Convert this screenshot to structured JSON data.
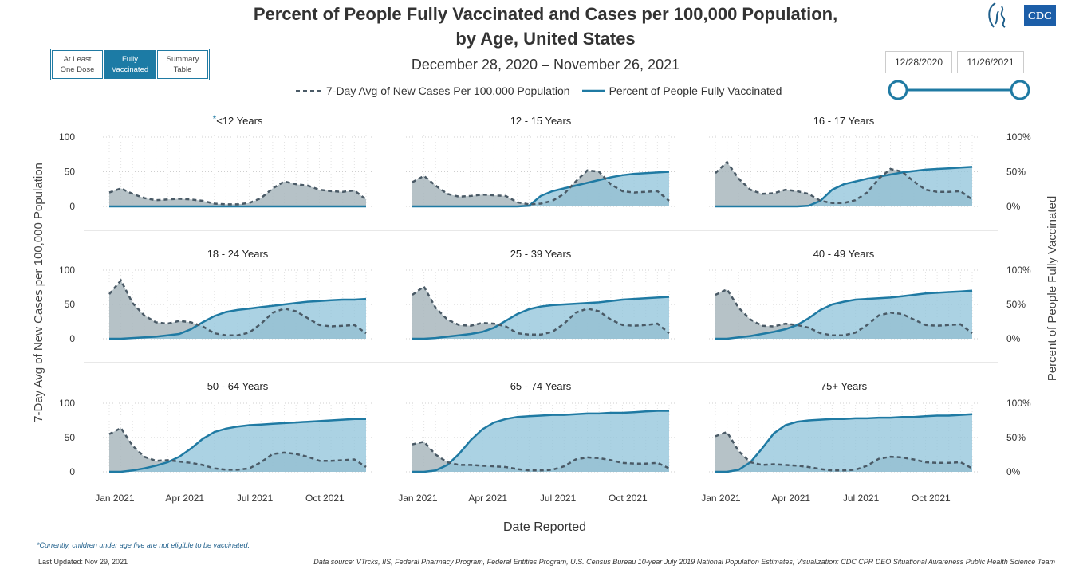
{
  "header": {
    "title_line1": "Percent of People Fully Vaccinated and Cases per 100,000 Population,",
    "title_line2": "by Age, United States",
    "subtitle": "December 28, 2020 – November 26, 2021",
    "logo_text": "CDC"
  },
  "toggle": {
    "options": [
      {
        "line1": "At Least",
        "line2": "One Dose"
      },
      {
        "line1": "Fully",
        "line2": "Vaccinated"
      },
      {
        "line1": "Summary",
        "line2": "Table"
      }
    ],
    "active_index": 1
  },
  "date_range": {
    "start": "12/28/2020",
    "end": "11/26/2021"
  },
  "legend": {
    "cases": "7-Day Avg of New Cases Per 100,000 Population",
    "vaccinated": "Percent of People Fully Vaccinated"
  },
  "footer": {
    "footnote": "*Currently, children under age five are not eligible to be vaccinated.",
    "last_updated": "Last Updated: Nov 29, 2021",
    "source": "Data source: VTrcks, IIS, Federal Pharmacy Program, Federal Entities Program, U.S. Census Bureau 10-year July 2019 National Population Estimates; Visualization: CDC CPR DEO Situational Awareness Public Health Science Team"
  },
  "colors": {
    "cases_line": "#4a5a66",
    "cases_fill": "#a9b7bd",
    "vax_line": "#1f7aa3",
    "vax_fill": "#8fc3d9",
    "grid": "#cfcfcf",
    "accent": "#1c7ba5"
  },
  "chart_data": {
    "type": "area",
    "xlabel": "Date Reported",
    "ylabel_left": "7-Day Avg of New Cases per 100,000 Population",
    "ylabel_right": "Percent of People Fully Vaccinated",
    "x_ticks": [
      "Jan 2021",
      "Apr 2021",
      "Jul 2021",
      "Oct 2021"
    ],
    "left_ticks": [
      "100",
      "50",
      "0"
    ],
    "right_ticks": [
      "100%",
      "50%",
      "0%"
    ],
    "ylim_left": [
      0,
      100
    ],
    "ylim_right": [
      0,
      100
    ],
    "x_months": [
      0,
      0.5,
      1,
      1.5,
      2,
      2.5,
      3,
      3.5,
      4,
      4.5,
      5,
      5.5,
      6,
      6.5,
      7,
      7.5,
      8,
      8.5,
      9,
      9.5,
      10,
      10.5,
      11
    ],
    "panels": [
      {
        "title": "<12 Years",
        "title_prefix": "*",
        "cases": [
          20,
          26,
          18,
          12,
          9,
          10,
          11,
          10,
          8,
          4,
          3,
          3,
          5,
          12,
          26,
          36,
          32,
          30,
          24,
          22,
          21,
          23,
          10
        ],
        "vaccinated": [
          0,
          0,
          0,
          0,
          0,
          0,
          0,
          0,
          0,
          0,
          0,
          0,
          0,
          0,
          0,
          0,
          0,
          0,
          0,
          0,
          0,
          0,
          0
        ]
      },
      {
        "title": "12 - 15 Years",
        "title_prefix": "",
        "cases": [
          35,
          44,
          30,
          18,
          14,
          15,
          17,
          16,
          15,
          6,
          3,
          4,
          8,
          18,
          36,
          52,
          50,
          32,
          22,
          20,
          21,
          22,
          8
        ],
        "vaccinated": [
          0,
          0,
          0,
          0,
          0,
          0,
          0,
          0,
          0,
          0,
          1,
          15,
          22,
          26,
          30,
          34,
          38,
          42,
          45,
          47,
          48,
          49,
          50
        ]
      },
      {
        "title": "16 - 17 Years",
        "title_prefix": "",
        "cases": [
          48,
          64,
          40,
          24,
          18,
          19,
          24,
          22,
          18,
          8,
          5,
          5,
          9,
          20,
          40,
          54,
          50,
          36,
          24,
          21,
          21,
          22,
          10
        ],
        "vaccinated": [
          0,
          0,
          0,
          0,
          0,
          0,
          0,
          0,
          1,
          8,
          24,
          32,
          36,
          40,
          43,
          46,
          49,
          51,
          53,
          54,
          55,
          56,
          57
        ]
      },
      {
        "title": "18 - 24 Years",
        "title_prefix": "",
        "cases": [
          65,
          85,
          52,
          34,
          24,
          22,
          26,
          24,
          18,
          8,
          5,
          5,
          9,
          22,
          38,
          44,
          40,
          30,
          20,
          18,
          19,
          20,
          8
        ],
        "vaccinated": [
          0,
          0,
          1,
          2,
          3,
          5,
          7,
          14,
          24,
          33,
          39,
          42,
          44,
          46,
          48,
          50,
          52,
          54,
          55,
          56,
          57,
          57,
          58
        ]
      },
      {
        "title": "25 - 39 Years",
        "title_prefix": "",
        "cases": [
          64,
          76,
          45,
          28,
          20,
          19,
          23,
          22,
          18,
          8,
          6,
          6,
          10,
          22,
          38,
          44,
          40,
          28,
          20,
          19,
          20,
          22,
          8
        ],
        "vaccinated": [
          0,
          0,
          1,
          3,
          5,
          7,
          10,
          16,
          26,
          36,
          43,
          47,
          49,
          50,
          51,
          52,
          53,
          55,
          57,
          58,
          59,
          60,
          61
        ]
      },
      {
        "title": "40 - 49 Years",
        "title_prefix": "",
        "cases": [
          64,
          72,
          45,
          28,
          19,
          18,
          22,
          20,
          16,
          8,
          5,
          5,
          9,
          20,
          34,
          38,
          36,
          28,
          20,
          19,
          20,
          21,
          8
        ],
        "vaccinated": [
          0,
          0,
          2,
          4,
          7,
          10,
          14,
          20,
          30,
          42,
          50,
          54,
          57,
          58,
          59,
          60,
          62,
          64,
          66,
          67,
          68,
          69,
          70
        ]
      },
      {
        "title": "50 - 64 Years",
        "title_prefix": "",
        "cases": [
          55,
          64,
          38,
          22,
          16,
          17,
          15,
          13,
          10,
          5,
          3,
          3,
          5,
          14,
          26,
          28,
          26,
          22,
          16,
          16,
          17,
          18,
          7
        ],
        "vaccinated": [
          0,
          0,
          2,
          5,
          9,
          14,
          22,
          34,
          48,
          58,
          63,
          66,
          68,
          69,
          70,
          71,
          72,
          73,
          74,
          75,
          76,
          77,
          77
        ]
      },
      {
        "title": "65 - 74 Years",
        "title_prefix": "",
        "cases": [
          40,
          44,
          25,
          14,
          10,
          10,
          9,
          8,
          7,
          4,
          2,
          2,
          3,
          8,
          18,
          21,
          20,
          17,
          13,
          12,
          12,
          13,
          5
        ],
        "vaccinated": [
          0,
          0,
          2,
          10,
          26,
          46,
          62,
          72,
          77,
          80,
          81,
          82,
          83,
          83,
          84,
          85,
          85,
          86,
          86,
          87,
          88,
          89,
          89
        ]
      },
      {
        "title": "75+ Years",
        "title_prefix": "",
        "cases": [
          52,
          58,
          30,
          14,
          10,
          11,
          10,
          9,
          7,
          4,
          2,
          2,
          3,
          9,
          19,
          22,
          21,
          18,
          14,
          13,
          13,
          14,
          5
        ],
        "vaccinated": [
          0,
          0,
          3,
          14,
          34,
          56,
          68,
          73,
          75,
          76,
          77,
          77,
          78,
          78,
          79,
          79,
          80,
          80,
          81,
          82,
          82,
          83,
          84
        ]
      }
    ]
  }
}
